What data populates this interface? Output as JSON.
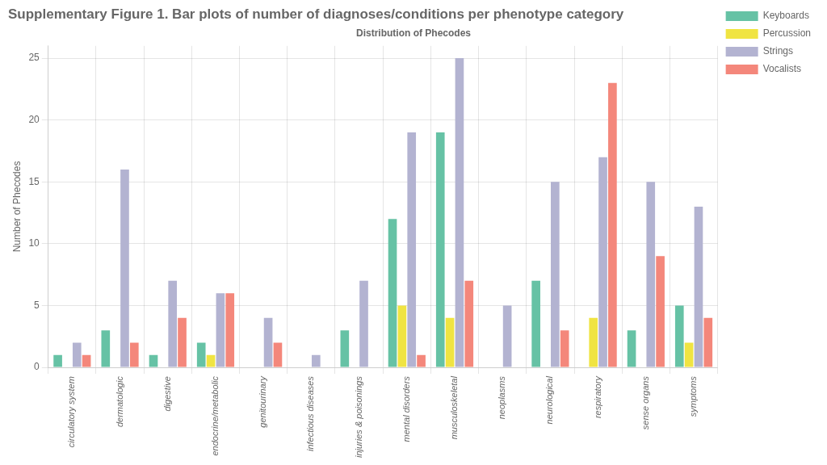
{
  "chart_data": {
    "type": "bar",
    "title": "Supplementary Figure 1. Bar plots of number of diagnoses/conditions per phenotype category",
    "subtitle": "Distribution of Phecodes",
    "ylabel": "Number of Phecodes",
    "categories": [
      "circulatory system",
      "dermatologic",
      "digestive",
      "endocrine/metabolic",
      "genitourinary",
      "infectious diseases",
      "injuries & poisonings",
      "mental disorders",
      "musculoskeletal",
      "neoplasms",
      "neurological",
      "respiratory",
      "sense organs",
      "symptoms"
    ],
    "series": [
      {
        "name": "Keyboards",
        "color": "#66c2a5",
        "values": [
          1,
          3,
          1,
          2,
          0,
          0,
          3,
          12,
          19,
          0,
          7,
          0,
          3,
          5
        ]
      },
      {
        "name": "Percussion",
        "color": "#f0e442",
        "values": [
          0,
          0,
          0,
          1,
          0,
          0,
          0,
          5,
          4,
          0,
          0,
          4,
          0,
          2
        ]
      },
      {
        "name": "Strings",
        "color": "#b3b3d1",
        "values": [
          2,
          16,
          7,
          6,
          4,
          1,
          7,
          19,
          25,
          5,
          15,
          17,
          15,
          13
        ]
      },
      {
        "name": "Vocalists",
        "color": "#f4877b",
        "values": [
          1,
          2,
          4,
          6,
          2,
          0,
          0,
          1,
          7,
          0,
          3,
          23,
          9,
          4
        ]
      }
    ],
    "ylim": [
      0,
      26
    ],
    "yticks": [
      0,
      5,
      10,
      15,
      20,
      25
    ],
    "grid": true,
    "legend": "right"
  }
}
